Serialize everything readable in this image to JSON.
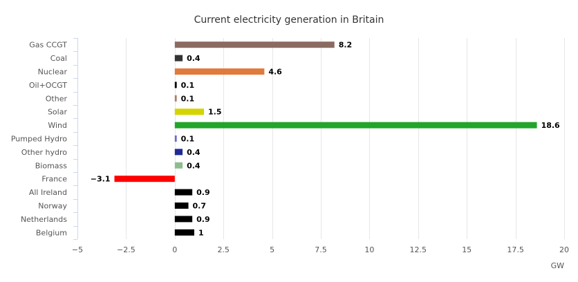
{
  "chart_data": {
    "type": "bar",
    "orientation": "horizontal",
    "title": "Current electricity generation in Britain",
    "xlabel": "GW",
    "ylabel": "",
    "xlim": [
      -5,
      20
    ],
    "xticks": [
      "−5",
      "−2.5",
      "0",
      "2.5",
      "5",
      "7.5",
      "10",
      "12.5",
      "15",
      "17.5",
      "20"
    ],
    "xtick_values": [
      -5,
      -2.5,
      0,
      2.5,
      5,
      7.5,
      10,
      12.5,
      15,
      17.5,
      20
    ],
    "grid": true,
    "legend": "none",
    "categories": [
      "Gas CCGT",
      "Coal",
      "Nuclear",
      "Oil+OCGT",
      "Other",
      "Solar",
      "Wind",
      "Pumped Hydro",
      "Other hydro",
      "Biomass",
      "France",
      "All Ireland",
      "Norway",
      "Netherlands",
      "Belgium"
    ],
    "values": [
      8.2,
      0.4,
      4.6,
      0.1,
      0.1,
      1.5,
      18.6,
      0.1,
      0.4,
      0.4,
      -3.1,
      0.9,
      0.7,
      0.9,
      1
    ],
    "value_labels": [
      "8.2",
      "0.4",
      "4.6",
      "0.1",
      "0.1",
      "1.5",
      "18.6",
      "0.1",
      "0.4",
      "0.4",
      "−3.1",
      "0.9",
      "0.7",
      "0.9",
      "1"
    ],
    "colors": [
      "#8b6b61",
      "#333333",
      "#e07b3c",
      "#000000",
      "#b07a6a",
      "#d4d400",
      "#22a52a",
      "#6a6ad0",
      "#1f2a96",
      "#8fbc8f",
      "#ff0000",
      "#000000",
      "#000000",
      "#000000",
      "#000000"
    ]
  }
}
